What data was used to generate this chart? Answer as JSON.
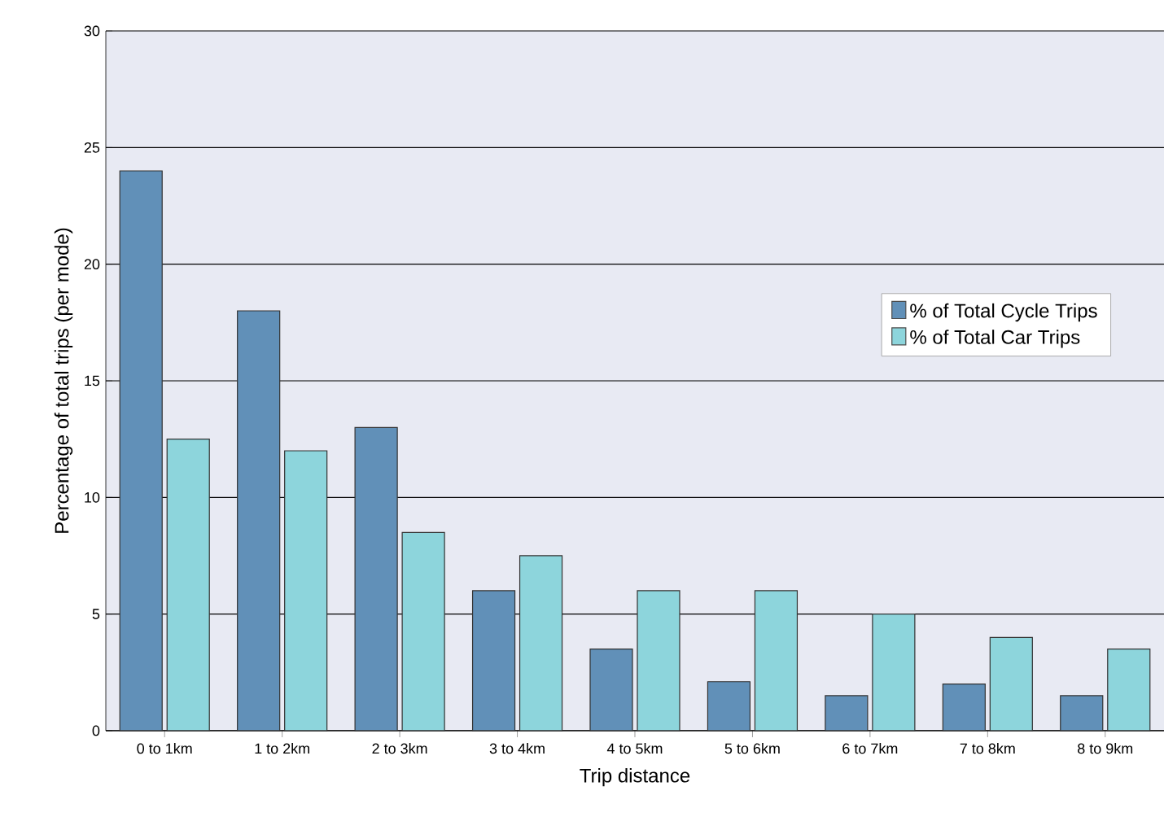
{
  "chart_data": {
    "type": "bar",
    "xlabel": "Trip distance",
    "ylabel": "Percentage of total trips (per mode)",
    "categories": [
      "0 to 1km",
      "1 to 2km",
      "2 to 3km",
      "3 to 4km",
      "4 to 5km",
      "5 to 6km",
      "6 to 7km",
      "7 to 8km",
      "8 to 9km"
    ],
    "series": [
      {
        "name": "% of Total Cycle Trips",
        "color": "#6190b8",
        "values": [
          24,
          18,
          13,
          6,
          3.5,
          2.1,
          1.5,
          2,
          1.5
        ]
      },
      {
        "name": "% of Total Car Trips",
        "color": "#8dd5dc",
        "values": [
          12.5,
          12,
          8.5,
          7.5,
          6,
          6,
          5,
          4,
          3.5
        ]
      }
    ],
    "ylim": [
      0,
      30
    ],
    "yticks": [
      0,
      5,
      10,
      15,
      20,
      25,
      30
    ],
    "grid": "y",
    "legend": "right"
  }
}
